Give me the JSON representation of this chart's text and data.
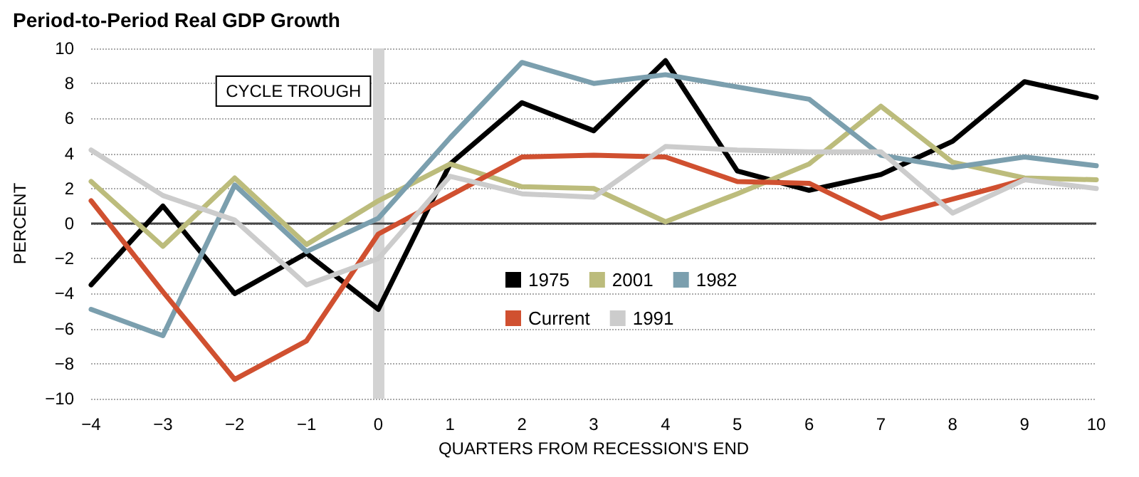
{
  "chart_data": {
    "type": "line",
    "title": "Period-to-Period Real GDP Growth",
    "xlabel": "QUARTERS FROM RECESSION'S END",
    "ylabel": "PERCENT",
    "x": [
      -4,
      -3,
      -2,
      -1,
      0,
      1,
      2,
      3,
      4,
      5,
      6,
      7,
      8,
      9,
      10
    ],
    "series": [
      {
        "name": "1975",
        "color": "#000000",
        "values": [
          -3.5,
          1.0,
          -4.0,
          -1.7,
          -4.9,
          3.4,
          6.9,
          5.3,
          9.3,
          3.0,
          1.9,
          2.8,
          4.7,
          8.1,
          7.2
        ]
      },
      {
        "name": "2001",
        "color": "#bcbc7c",
        "values": [
          2.4,
          -1.3,
          2.6,
          -1.2,
          1.3,
          3.4,
          2.1,
          2.0,
          0.1,
          1.7,
          3.4,
          6.7,
          3.5,
          2.6,
          2.5
        ]
      },
      {
        "name": "1982",
        "color": "#7b9fae",
        "values": [
          -4.9,
          -6.4,
          2.2,
          -1.6,
          0.3,
          4.9,
          9.2,
          8.0,
          8.5,
          7.8,
          7.1,
          3.9,
          3.2,
          3.8,
          3.3
        ]
      },
      {
        "name": "Current",
        "color": "#d05030",
        "values": [
          1.3,
          -3.9,
          -8.9,
          -6.7,
          -0.6,
          1.6,
          3.8,
          3.9,
          3.8,
          2.4,
          2.3,
          0.3,
          1.4,
          2.5,
          null
        ]
      },
      {
        "name": "1991",
        "color": "#cccccc",
        "values": [
          4.2,
          1.6,
          0.2,
          -3.5,
          -2.0,
          2.7,
          1.7,
          1.5,
          4.4,
          4.2,
          4.1,
          4.1,
          0.6,
          2.5,
          2.0
        ]
      }
    ],
    "xlim": [
      -4,
      10
    ],
    "xticks": [
      {
        "value": -4,
        "label": "−4"
      },
      {
        "value": -3,
        "label": "−3"
      },
      {
        "value": -2,
        "label": "−2"
      },
      {
        "value": -1,
        "label": "−1"
      },
      0,
      1,
      2,
      3,
      4,
      5,
      6,
      7,
      8,
      9,
      10
    ],
    "ylim": [
      -10,
      10
    ],
    "yticks": [
      {
        "value": -10,
        "label": "−10"
      },
      {
        "value": -8,
        "label": "−8"
      },
      {
        "value": -6,
        "label": "−6"
      },
      {
        "value": -4,
        "label": "−4"
      },
      {
        "value": -2,
        "label": "−2"
      },
      0,
      2,
      4,
      6,
      8,
      10
    ],
    "ref_lines": [
      {
        "axis": "x",
        "value": 0,
        "label": "CYCLE TROUGH",
        "color": "#d3d3d3"
      },
      {
        "axis": "y",
        "value": 0,
        "color": "#444444"
      }
    ],
    "grid": "y",
    "legend": "bottom",
    "marker": "none",
    "line_style": "solid"
  }
}
